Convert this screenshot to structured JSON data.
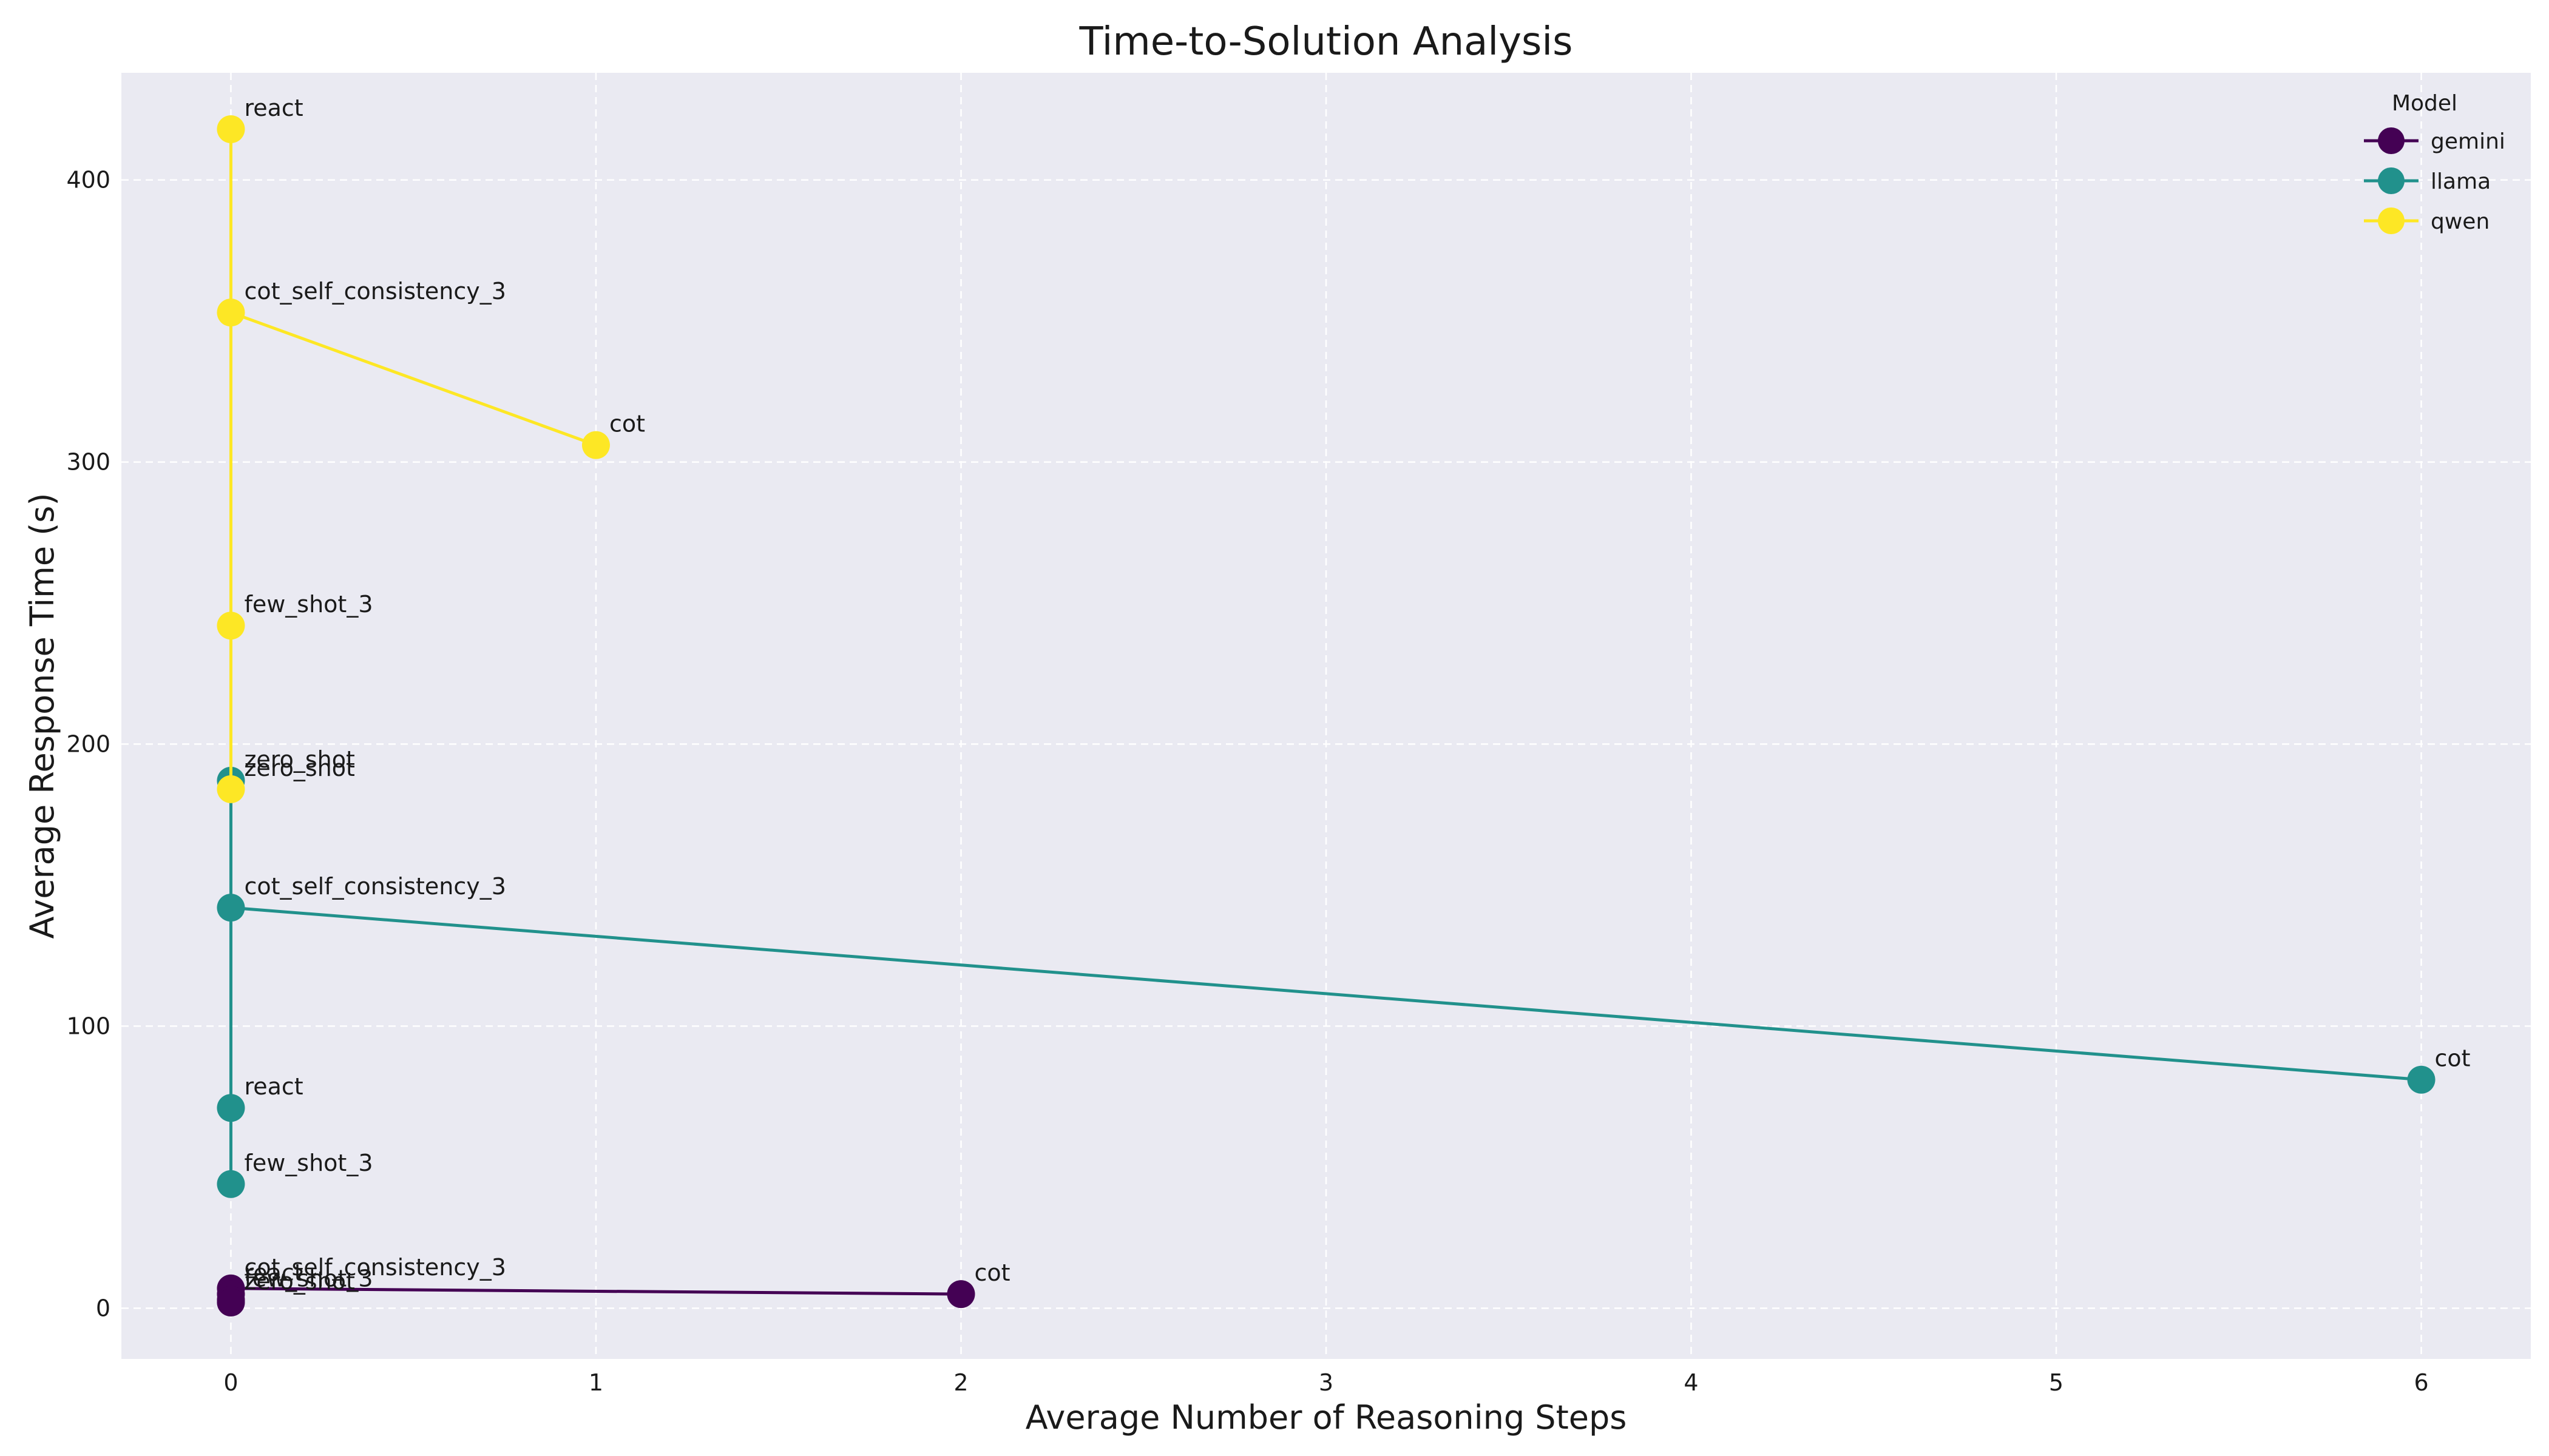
{
  "chart_data": {
    "type": "line",
    "title": "Time-to-Solution Analysis",
    "xlabel": "Average Number of Reasoning Steps",
    "ylabel": "Average Response Time (s)",
    "xlim": [
      -0.3,
      6.3
    ],
    "ylim": [
      -18,
      438
    ],
    "xticks": [
      0,
      1,
      2,
      3,
      4,
      5,
      6
    ],
    "yticks": [
      0,
      100,
      200,
      300,
      400
    ],
    "grid": true,
    "legend": {
      "title": "Model",
      "placement": "top-right"
    },
    "background_color": "#eaeaf2",
    "series": [
      {
        "name": "gemini",
        "color": "#440154",
        "points": [
          {
            "x": 2,
            "y": 5,
            "label": "cot"
          },
          {
            "x": 0,
            "y": 7,
            "label": "cot_self_consistency_3"
          },
          {
            "x": 0,
            "y": 5,
            "label": "react"
          },
          {
            "x": 0,
            "y": 3,
            "label": "few_shot_3"
          },
          {
            "x": 0,
            "y": 2,
            "label": "zero_shot"
          }
        ]
      },
      {
        "name": "llama",
        "color": "#21918c",
        "points": [
          {
            "x": 6,
            "y": 81,
            "label": "cot"
          },
          {
            "x": 0,
            "y": 142,
            "label": "cot_self_consistency_3"
          },
          {
            "x": 0,
            "y": 187,
            "label": "zero_shot"
          },
          {
            "x": 0,
            "y": 71,
            "label": "react"
          },
          {
            "x": 0,
            "y": 44,
            "label": "few_shot_3"
          }
        ]
      },
      {
        "name": "qwen",
        "color": "#fde725",
        "points": [
          {
            "x": 1,
            "y": 306,
            "label": "cot"
          },
          {
            "x": 0,
            "y": 353,
            "label": "cot_self_consistency_3"
          },
          {
            "x": 0,
            "y": 418,
            "label": "react"
          },
          {
            "x": 0,
            "y": 242,
            "label": "few_shot_3"
          },
          {
            "x": 0,
            "y": 184,
            "label": "zero_shot"
          }
        ]
      }
    ]
  }
}
